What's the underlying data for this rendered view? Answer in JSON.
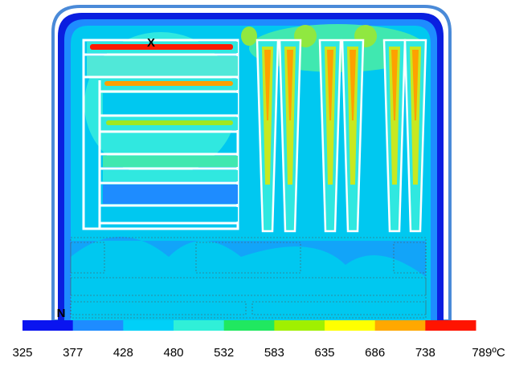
{
  "markers": {
    "top": "X",
    "bottom": "N"
  },
  "colorbar": {
    "colors": [
      "#0a14f0",
      "#1e8cff",
      "#00d0f8",
      "#30f0d8",
      "#20e860",
      "#a0f000",
      "#ffff00",
      "#ffa800",
      "#ff1400"
    ],
    "labels": [
      "325",
      "377",
      "428",
      "480",
      "532",
      "583",
      "635",
      "686",
      "738",
      "789ºC"
    ]
  }
}
